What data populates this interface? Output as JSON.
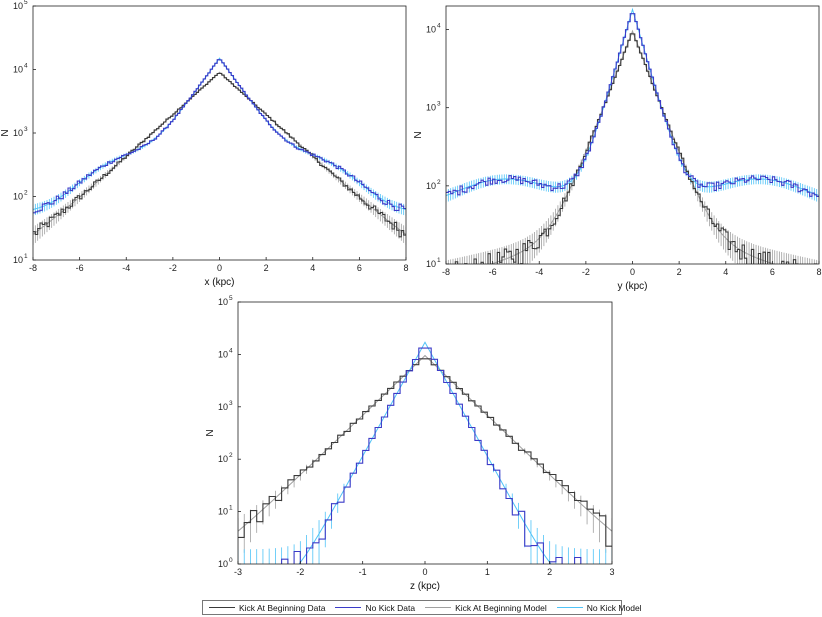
{
  "chart_data": [
    {
      "type": "line",
      "title": "",
      "xlabel": "x (kpc)",
      "ylabel": "N",
      "xlim": [
        -8,
        8
      ],
      "ylim": [
        10,
        100000
      ],
      "yscale": "log",
      "xticks": [
        "-8",
        "-6",
        "-4",
        "-2",
        "0",
        "2",
        "4",
        "6",
        "8"
      ],
      "yticks": [
        "10",
        "10",
        "10",
        "10",
        "10"
      ],
      "ytick_exponents": [
        "1",
        "2",
        "3",
        "4",
        "5"
      ],
      "profile": {
        "kind": "disk",
        "kick_peak": 9000,
        "kick_scale": 1.3,
        "kick_base": 22,
        "nokick_peak": 15000,
        "nokick_scale": 0.85,
        "bump_amp": 250,
        "bump_pos": 4,
        "bump_width": 1.4,
        "nokick_base": 85,
        "nokick_base_scale": 20
      }
    },
    {
      "type": "line",
      "title": "",
      "xlabel": "y (kpc)",
      "ylabel": "N",
      "xlim": [
        -8,
        8
      ],
      "ylim": [
        10,
        20000
      ],
      "yscale": "log",
      "xticks": [
        "-8",
        "-6",
        "-4",
        "-2",
        "0",
        "2",
        "4",
        "6",
        "8"
      ],
      "yticks": [
        "10",
        "10",
        "10",
        "10"
      ],
      "ytick_exponents": [
        "1",
        "2",
        "3",
        "4"
      ],
      "profile": {
        "kind": "disk",
        "kick_peak": 9500,
        "kick_scale": 0.55,
        "kick_base": 25,
        "nokick_peak": 18000,
        "nokick_scale": 0.42,
        "bump_amp": 60,
        "bump_pos": 5.5,
        "bump_width": 1.6,
        "nokick_base": 75,
        "nokick_base_scale": 30
      }
    },
    {
      "type": "line",
      "title": "",
      "xlabel": "z (kpc)",
      "ylabel": "N",
      "xlim": [
        -3,
        3
      ],
      "ylim": [
        1,
        100000
      ],
      "yscale": "log",
      "xticks": [
        "-3",
        "-2",
        "-1",
        "0",
        "1",
        "2",
        "3"
      ],
      "yticks": [
        "10",
        "10",
        "10",
        "10",
        "10",
        "10"
      ],
      "ytick_exponents": [
        "0",
        "1",
        "2",
        "3",
        "4",
        "5"
      ],
      "profile": {
        "kind": "vertical",
        "kick_peak": 9500,
        "kick_scale": 0.38,
        "kick_base": 5,
        "nokick_peak": 17000,
        "nokick_scale": 0.2
      }
    }
  ],
  "series": [
    {
      "name": "Kick At Beginning Data",
      "color": "#3a3a3a"
    },
    {
      "name": "No Kick Data",
      "color": "#3b3bc8"
    },
    {
      "name": "Kick At Beginning Model",
      "color": "#a0a0a0"
    },
    {
      "name": "No Kick Model",
      "color": "#4fc3f7"
    }
  ]
}
